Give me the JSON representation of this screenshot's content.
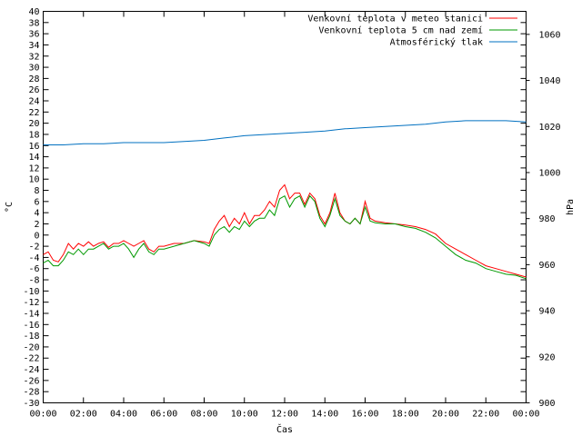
{
  "chart_data": {
    "type": "line",
    "xlabel": "Čas",
    "ylabel": "°C",
    "y2label": "hPa",
    "x_ticks": [
      "00:00",
      "02:00",
      "04:00",
      "06:00",
      "08:00",
      "10:00",
      "12:00",
      "14:00",
      "16:00",
      "18:00",
      "20:00",
      "22:00",
      "00:00"
    ],
    "xlim": [
      0,
      24
    ],
    "ylim": [
      -30,
      40
    ],
    "y_ticks": [
      -30,
      -28,
      -26,
      -24,
      -22,
      -20,
      -18,
      -16,
      -14,
      -12,
      -10,
      -8,
      -6,
      -4,
      -2,
      0,
      2,
      4,
      6,
      8,
      10,
      12,
      14,
      16,
      18,
      20,
      22,
      24,
      26,
      28,
      30,
      32,
      34,
      36,
      38,
      40
    ],
    "y2lim": [
      900,
      1070
    ],
    "y2_ticks": [
      900,
      920,
      940,
      960,
      980,
      1000,
      1020,
      1040,
      1060
    ],
    "grid": false,
    "legend_position": "top-right",
    "series": [
      {
        "name": "Venkovní teplota v meteo stanici",
        "axis": "left",
        "color": "#ff0000",
        "x": [
          0,
          0.25,
          0.5,
          0.75,
          1.0,
          1.25,
          1.5,
          1.75,
          2.0,
          2.25,
          2.5,
          2.75,
          3.0,
          3.25,
          3.5,
          3.75,
          4.0,
          4.25,
          4.5,
          4.75,
          5.0,
          5.25,
          5.5,
          5.75,
          6.0,
          6.5,
          7.0,
          7.5,
          8.0,
          8.25,
          8.5,
          8.75,
          9.0,
          9.25,
          9.5,
          9.75,
          10.0,
          10.25,
          10.5,
          10.75,
          11.0,
          11.25,
          11.5,
          11.75,
          12.0,
          12.25,
          12.5,
          12.75,
          13.0,
          13.25,
          13.5,
          13.75,
          14.0,
          14.25,
          14.5,
          14.75,
          15.0,
          15.25,
          15.5,
          15.75,
          16.0,
          16.25,
          16.5,
          17.0,
          17.5,
          18.0,
          18.5,
          19.0,
          19.5,
          20.0,
          20.5,
          21.0,
          21.5,
          22.0,
          22.5,
          23.0,
          23.5,
          24.0
        ],
        "values": [
          -3.5,
          -3.0,
          -4.5,
          -4.8,
          -3.5,
          -1.5,
          -2.5,
          -1.5,
          -2.0,
          -1.2,
          -2.0,
          -1.5,
          -1.2,
          -2.2,
          -1.5,
          -1.5,
          -1.0,
          -1.5,
          -2.0,
          -1.5,
          -1.0,
          -2.5,
          -3.0,
          -2.0,
          -2.0,
          -1.5,
          -1.5,
          -1.0,
          -1.2,
          -1.5,
          1.0,
          2.5,
          3.5,
          1.5,
          3.0,
          2.0,
          4.0,
          2.0,
          3.5,
          3.5,
          4.5,
          6.0,
          5.0,
          8.0,
          9.0,
          6.5,
          7.5,
          7.5,
          5.5,
          7.5,
          6.5,
          3.5,
          2.0,
          4.0,
          7.5,
          4.0,
          2.5,
          2.0,
          3.0,
          2.0,
          6.0,
          3.0,
          2.5,
          2.2,
          2.0,
          1.8,
          1.5,
          1.0,
          0.2,
          -1.5,
          -2.5,
          -3.5,
          -4.5,
          -5.5,
          -6.0,
          -6.5,
          -7.0,
          -7.5
        ]
      },
      {
        "name": "Venkovní teplota 5 cm nad zemí",
        "axis": "left",
        "color": "#009900",
        "x": [
          0,
          0.25,
          0.5,
          0.75,
          1.0,
          1.25,
          1.5,
          1.75,
          2.0,
          2.25,
          2.5,
          2.75,
          3.0,
          3.25,
          3.5,
          3.75,
          4.0,
          4.25,
          4.5,
          4.75,
          5.0,
          5.25,
          5.5,
          5.75,
          6.0,
          6.5,
          7.0,
          7.5,
          8.0,
          8.25,
          8.5,
          8.75,
          9.0,
          9.25,
          9.5,
          9.75,
          10.0,
          10.25,
          10.5,
          10.75,
          11.0,
          11.25,
          11.5,
          11.75,
          12.0,
          12.25,
          12.5,
          12.75,
          13.0,
          13.25,
          13.5,
          13.75,
          14.0,
          14.25,
          14.5,
          14.75,
          15.0,
          15.25,
          15.5,
          15.75,
          16.0,
          16.25,
          16.5,
          17.0,
          17.5,
          18.0,
          18.5,
          19.0,
          19.5,
          20.0,
          20.5,
          21.0,
          21.5,
          22.0,
          22.5,
          23.0,
          23.5,
          24.0
        ],
        "values": [
          -5.0,
          -4.5,
          -5.5,
          -5.5,
          -4.5,
          -3.0,
          -3.5,
          -2.5,
          -3.5,
          -2.5,
          -2.5,
          -2.0,
          -1.5,
          -2.5,
          -2.0,
          -2.0,
          -1.5,
          -2.5,
          -4.0,
          -2.5,
          -1.5,
          -3.0,
          -3.5,
          -2.5,
          -2.5,
          -2.0,
          -1.5,
          -1.0,
          -1.5,
          -2.0,
          0.0,
          1.0,
          1.5,
          0.5,
          1.5,
          1.0,
          2.5,
          1.5,
          2.5,
          3.0,
          3.0,
          4.5,
          3.5,
          6.5,
          7.0,
          5.0,
          6.5,
          7.0,
          5.0,
          7.0,
          6.0,
          3.0,
          1.5,
          3.5,
          6.5,
          3.5,
          2.5,
          2.0,
          3.0,
          2.0,
          5.0,
          2.5,
          2.2,
          2.0,
          2.0,
          1.5,
          1.2,
          0.5,
          -0.5,
          -2.0,
          -3.5,
          -4.5,
          -5.0,
          -6.0,
          -6.5,
          -7.0,
          -7.2,
          -7.8
        ]
      },
      {
        "name": "Atmosférický tlak",
        "axis": "right",
        "color": "#0070c0",
        "x": [
          0,
          1,
          2,
          3,
          4,
          5,
          6,
          7,
          8,
          9,
          10,
          11,
          12,
          13,
          14,
          15,
          16,
          17,
          18,
          19,
          20,
          21,
          22,
          23,
          24
        ],
        "values": [
          1012,
          1012,
          1012.5,
          1012.5,
          1013,
          1013,
          1013,
          1013.5,
          1014,
          1015,
          1016,
          1016.5,
          1017,
          1017.5,
          1018,
          1019,
          1019.5,
          1020,
          1020.5,
          1021,
          1022,
          1022.5,
          1022.5,
          1022.5,
          1022
        ]
      }
    ]
  }
}
